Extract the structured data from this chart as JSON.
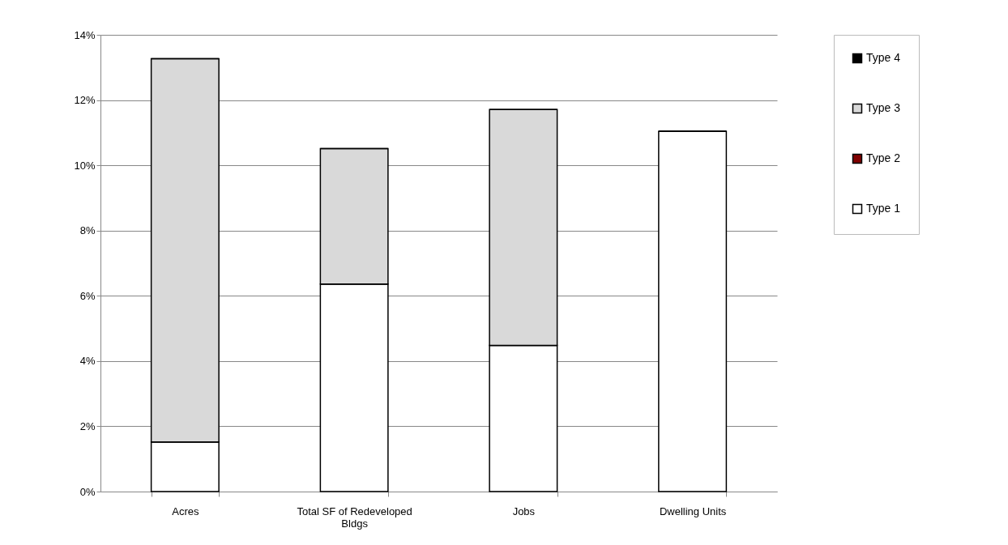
{
  "chart_data": {
    "type": "bar",
    "stacked": true,
    "categories": [
      "Acres",
      "Total SF of Redeveloped Bldgs",
      "Jobs",
      "Dwelling Units"
    ],
    "series": [
      {
        "name": "Type 1",
        "color": "#ffffff",
        "values": [
          1.52,
          6.36,
          4.48,
          11.04
        ]
      },
      {
        "name": "Type 2",
        "color": "#800000",
        "values": [
          0,
          0,
          0,
          0
        ]
      },
      {
        "name": "Type 3",
        "color": "#d9d9d9",
        "values": [
          11.75,
          4.15,
          7.23,
          0
        ]
      },
      {
        "name": "Type 4",
        "color": "#000000",
        "values": [
          0,
          0,
          0,
          0
        ]
      }
    ],
    "ylim": [
      0,
      14
    ],
    "yticks": [
      {
        "value": 0,
        "label": "0%"
      },
      {
        "value": 2,
        "label": "2%"
      },
      {
        "value": 4,
        "label": "4%"
      },
      {
        "value": 6,
        "label": "6%"
      },
      {
        "value": 8,
        "label": "8%"
      },
      {
        "value": 10,
        "label": "10%"
      },
      {
        "value": 12,
        "label": "12%"
      },
      {
        "value": 14,
        "label": "14%"
      }
    ],
    "grid": "y",
    "legend": "right"
  }
}
